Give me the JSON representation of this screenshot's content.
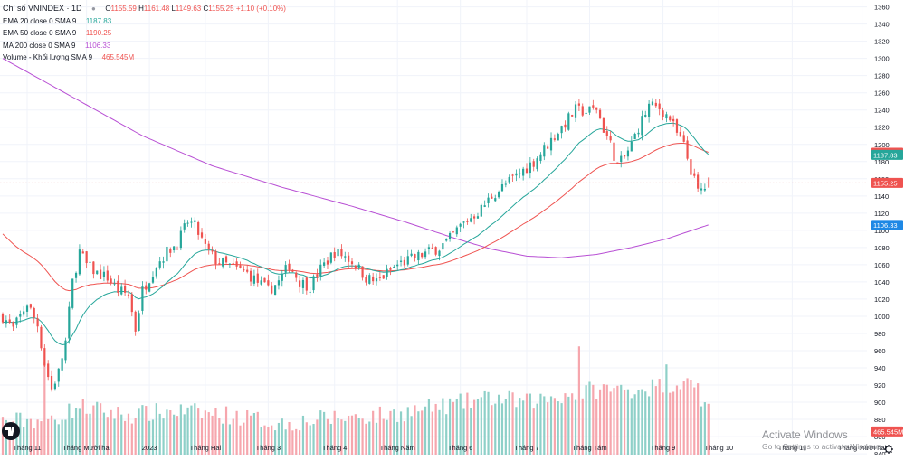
{
  "legend": {
    "title": "Chỉ số VNINDEX · 1D",
    "open_label": "O",
    "open": "1155.59",
    "high_label": "H",
    "high": "1161.48",
    "low_label": "L",
    "low": "1149.63",
    "close_label": "C",
    "close": "1155.25",
    "change": "+1.10 (+0.10%)",
    "ema20_label": "EMA 20 close 0 SMA 9",
    "ema20_value": "1187.83",
    "ema50_label": "EMA 50 close 0 SMA 9",
    "ema50_value": "1190.25",
    "ma200_label": "MA 200 close 0 SMA 9",
    "ma200_value": "1106.33",
    "volume_label": "Volume - Khối lượng SMA 9",
    "volume_value": "465.545M"
  },
  "watermark": {
    "title": "Activate Windows",
    "subtitle": "Go to Settings to activate Windows."
  },
  "colors": {
    "up": "#26a69a",
    "down": "#ef5350",
    "vol_up": "#8ed0c8",
    "vol_down": "#f6a6ad",
    "ema20": "#26a69a",
    "ema50": "#ef5350",
    "ma200": "#b84fd4",
    "price_line": "#e8a4a4",
    "grid": "#f0f3fa",
    "axis_text": "#131722"
  },
  "chart_data": {
    "type": "candlestick",
    "symbol": "VNINDEX",
    "interval": "1D",
    "y_axis": {
      "min": 838,
      "max": 1368,
      "ticks": [
        840,
        860,
        880,
        900,
        920,
        940,
        960,
        980,
        1000,
        1020,
        1040,
        1060,
        1080,
        1100,
        1120,
        1140,
        1160,
        1180,
        1200,
        1220,
        1240,
        1260,
        1280,
        1300,
        1320,
        1340,
        1360
      ]
    },
    "x_axis": {
      "labels": [
        "Tháng 11",
        "Tháng Mười hai",
        "2023",
        "Tháng Hai",
        "Tháng 3",
        "Tháng 4",
        "Tháng Năm",
        "Tháng 6",
        "Tháng 7",
        "Tháng Tám",
        "Tháng 9",
        "Tháng 10",
        "Tháng 11",
        "Tháng Mười hai"
      ],
      "label_bars": [
        7,
        24,
        42,
        58,
        76,
        95,
        113,
        131,
        150,
        168,
        189,
        205,
        226,
        246
      ],
      "total_bars": 262
    },
    "price_anchors": [
      [
        0,
        1000
      ],
      [
        3,
        985
      ],
      [
        7,
        1015
      ],
      [
        10,
        990
      ],
      [
        12,
        945
      ],
      [
        14,
        915
      ],
      [
        16,
        935
      ],
      [
        18,
        970
      ],
      [
        20,
        1040
      ],
      [
        22,
        1075
      ],
      [
        24,
        1060
      ],
      [
        27,
        1050
      ],
      [
        30,
        1045
      ],
      [
        33,
        1030
      ],
      [
        36,
        1025
      ],
      [
        38,
        985
      ],
      [
        40,
        1030
      ],
      [
        42,
        1045
      ],
      [
        44,
        1060
      ],
      [
        47,
        1075
      ],
      [
        50,
        1085
      ],
      [
        53,
        1110
      ],
      [
        55,
        1105
      ],
      [
        58,
        1080
      ],
      [
        61,
        1065
      ],
      [
        64,
        1060
      ],
      [
        67,
        1055
      ],
      [
        70,
        1050
      ],
      [
        73,
        1040
      ],
      [
        76,
        1030
      ],
      [
        79,
        1040
      ],
      [
        82,
        1060
      ],
      [
        85,
        1040
      ],
      [
        88,
        1035
      ],
      [
        91,
        1055
      ],
      [
        95,
        1075
      ],
      [
        98,
        1070
      ],
      [
        101,
        1060
      ],
      [
        104,
        1045
      ],
      [
        107,
        1040
      ],
      [
        110,
        1050
      ],
      [
        113,
        1060
      ],
      [
        116,
        1065
      ],
      [
        119,
        1070
      ],
      [
        122,
        1075
      ],
      [
        125,
        1080
      ],
      [
        128,
        1090
      ],
      [
        131,
        1105
      ],
      [
        134,
        1115
      ],
      [
        137,
        1125
      ],
      [
        140,
        1140
      ],
      [
        143,
        1150
      ],
      [
        146,
        1160
      ],
      [
        149,
        1170
      ],
      [
        152,
        1180
      ],
      [
        155,
        1195
      ],
      [
        158,
        1210
      ],
      [
        161,
        1225
      ],
      [
        164,
        1240
      ],
      [
        167,
        1238
      ],
      [
        170,
        1242
      ],
      [
        172,
        1218
      ],
      [
        174,
        1200
      ],
      [
        176,
        1175
      ],
      [
        178,
        1185
      ],
      [
        180,
        1200
      ],
      [
        182,
        1220
      ],
      [
        185,
        1245
      ],
      [
        188,
        1242
      ],
      [
        191,
        1230
      ],
      [
        193,
        1212
      ],
      [
        195,
        1198
      ],
      [
        197,
        1170
      ],
      [
        199,
        1145
      ],
      [
        201,
        1150
      ],
      [
        202,
        1155
      ]
    ],
    "last_bar_index": 202,
    "latest": {
      "open": 1155.59,
      "high": 1161.48,
      "low": 1149.63,
      "close": 1155.25
    },
    "indicators": [
      {
        "name": "EMA 20",
        "value": 1187.83,
        "color": "#26a69a"
      },
      {
        "name": "EMA 50",
        "value": 1190.25,
        "color": "#ef5350"
      },
      {
        "name": "MA 200",
        "value": 1106.33,
        "color": "#b84fd4",
        "anchors": [
          [
            0,
            1300
          ],
          [
            20,
            1255
          ],
          [
            40,
            1210
          ],
          [
            60,
            1175
          ],
          [
            80,
            1150
          ],
          [
            100,
            1128
          ],
          [
            115,
            1110
          ],
          [
            130,
            1090
          ],
          [
            140,
            1078
          ],
          [
            150,
            1070
          ],
          [
            160,
            1068
          ],
          [
            170,
            1072
          ],
          [
            180,
            1080
          ],
          [
            190,
            1090
          ],
          [
            202,
            1106.3
          ]
        ]
      }
    ],
    "volume": {
      "label": "Volume",
      "latest": "465.545M",
      "base_value": 838,
      "anchors": [
        [
          0,
          878
        ],
        [
          14,
          880
        ],
        [
          22,
          895
        ],
        [
          35,
          885
        ],
        [
          50,
          890
        ],
        [
          65,
          885
        ],
        [
          80,
          875
        ],
        [
          95,
          882
        ],
        [
          110,
          885
        ],
        [
          125,
          895
        ],
        [
          140,
          905
        ],
        [
          150,
          900
        ],
        [
          160,
          908
        ],
        [
          170,
          915
        ],
        [
          180,
          915
        ],
        [
          190,
          920
        ],
        [
          196,
          925
        ],
        [
          202,
          890
        ]
      ],
      "spikes": [
        [
          12,
          946
        ],
        [
          165,
          965
        ],
        [
          190,
          944
        ],
        [
          196,
          928
        ],
        [
          199,
          922
        ],
        [
          201,
          900
        ]
      ]
    },
    "price_tags": [
      {
        "label": "1190.25",
        "value": 1190.25,
        "color": "#ef5350"
      },
      {
        "label": "1187.83",
        "value": 1187.83,
        "color": "#26a69a"
      },
      {
        "label": "1155.25",
        "value": 1155.25,
        "color": "#ef5350"
      },
      {
        "label": "1106.33",
        "value": 1106.33,
        "color": "#1e88e5"
      },
      {
        "label": "465.545M",
        "value": 866,
        "color": "#ef5350"
      }
    ]
  }
}
